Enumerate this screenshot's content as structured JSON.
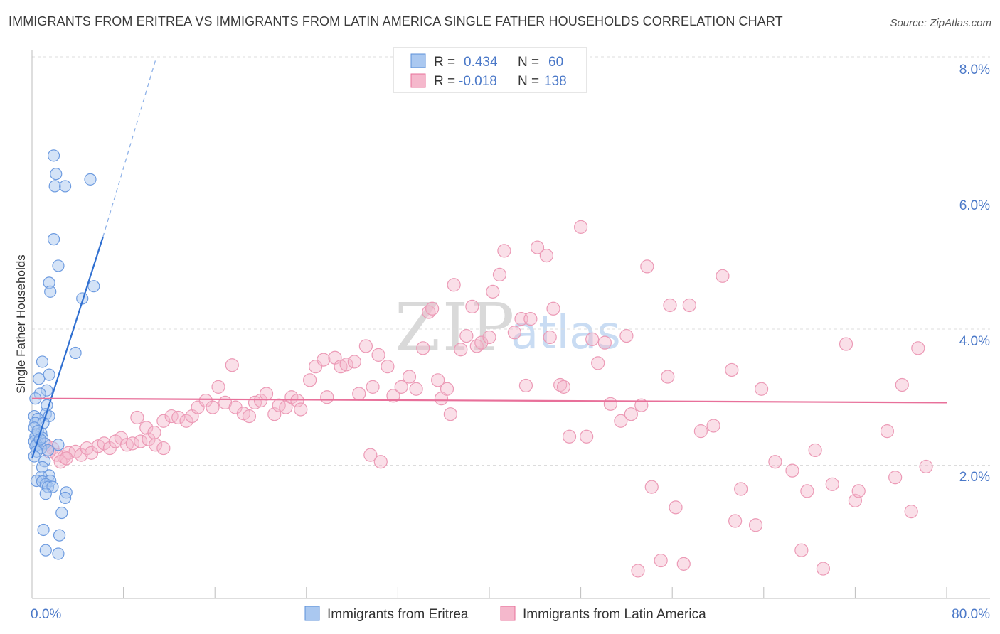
{
  "header": {
    "title": "IMMIGRANTS FROM ERITREA VS IMMIGRANTS FROM LATIN AMERICA SINGLE FATHER HOUSEHOLDS CORRELATION CHART",
    "source": "Source: ZipAtlas.com"
  },
  "watermark": {
    "zip": "ZIP",
    "atlas": "atlas"
  },
  "colors": {
    "series_blue": "#5b8fd9",
    "series_blue_fill": "#aac8f0",
    "series_pink": "#e8709a",
    "series_pink_fill": "#f5b8cc",
    "axis_label": "#4a78c8",
    "grid": "#d8d8d8"
  },
  "legend": {
    "rows": [
      {
        "r_label": "R =",
        "r_value": "0.434",
        "n_label": "N =",
        "n_value": "60"
      },
      {
        "r_label": "R =",
        "r_value": "-0.018",
        "n_label": "N =",
        "n_value": "138"
      }
    ]
  },
  "chart_data": {
    "type": "scatter",
    "title": "IMMIGRANTS FROM ERITREA VS IMMIGRANTS FROM LATIN AMERICA SINGLE FATHER HOUSEHOLDS CORRELATION CHART",
    "xlabel": "",
    "ylabel": "Single Father Households",
    "xlim": [
      0,
      80
    ],
    "ylim": [
      0,
      8
    ],
    "x_tick_labels": [
      "0.0%",
      "80.0%"
    ],
    "y_ticks": [
      2,
      4,
      6,
      8
    ],
    "y_tick_labels": [
      "2.0%",
      "4.0%",
      "6.0%",
      "8.0%"
    ],
    "grid": true,
    "legend_position": "top-center",
    "series": [
      {
        "name": "Immigrants from Eritrea",
        "color": "blue",
        "r": 0.434,
        "n": 60,
        "trend": {
          "x0": 0.0,
          "y0": 2.1,
          "x1": 6.2,
          "y1": 5.35,
          "dash_x1": 10.8,
          "dash_y1": 7.95
        },
        "points": [
          [
            1.9,
            6.55
          ],
          [
            2.1,
            6.28
          ],
          [
            2.0,
            6.1
          ],
          [
            2.9,
            6.1
          ],
          [
            5.1,
            6.2
          ],
          [
            1.9,
            5.32
          ],
          [
            2.3,
            4.93
          ],
          [
            1.5,
            4.68
          ],
          [
            1.6,
            4.55
          ],
          [
            5.4,
            4.63
          ],
          [
            4.4,
            4.45
          ],
          [
            3.8,
            3.65
          ],
          [
            0.9,
            3.52
          ],
          [
            1.5,
            3.33
          ],
          [
            0.6,
            3.27
          ],
          [
            1.3,
            3.1
          ],
          [
            0.7,
            3.05
          ],
          [
            0.3,
            2.98
          ],
          [
            1.3,
            2.88
          ],
          [
            1.2,
            2.75
          ],
          [
            1.5,
            2.72
          ],
          [
            0.2,
            2.72
          ],
          [
            0.5,
            2.68
          ],
          [
            0.3,
            2.62
          ],
          [
            1.0,
            2.62
          ],
          [
            0.2,
            2.55
          ],
          [
            0.8,
            2.47
          ],
          [
            0.4,
            2.45
          ],
          [
            0.3,
            2.42
          ],
          [
            0.9,
            2.4
          ],
          [
            0.2,
            2.35
          ],
          [
            0.5,
            2.33
          ],
          [
            1.1,
            2.32
          ],
          [
            0.4,
            2.3
          ],
          [
            2.3,
            2.3
          ],
          [
            0.3,
            2.28
          ],
          [
            0.8,
            2.25
          ],
          [
            1.4,
            2.22
          ],
          [
            0.4,
            2.2
          ],
          [
            0.2,
            2.13
          ],
          [
            1.1,
            2.06
          ],
          [
            0.9,
            1.97
          ],
          [
            1.5,
            1.85
          ],
          [
            0.8,
            1.83
          ],
          [
            0.4,
            1.77
          ],
          [
            0.9,
            1.76
          ],
          [
            1.6,
            1.77
          ],
          [
            1.2,
            1.72
          ],
          [
            1.4,
            1.68
          ],
          [
            1.8,
            1.68
          ],
          [
            3.0,
            1.6
          ],
          [
            1.2,
            1.58
          ],
          [
            2.9,
            1.52
          ],
          [
            2.6,
            1.3
          ],
          [
            1.0,
            1.05
          ],
          [
            2.4,
            0.97
          ],
          [
            1.2,
            0.75
          ],
          [
            2.3,
            0.7
          ],
          [
            0.5,
            2.5
          ],
          [
            0.7,
            2.38
          ]
        ]
      },
      {
        "name": "Immigrants from Latin America",
        "color": "pink",
        "r": -0.018,
        "n": 138,
        "trend": {
          "x0": 0.0,
          "y0": 2.98,
          "x1": 80.0,
          "y1": 2.92
        },
        "points": [
          [
            1.2,
            2.3
          ],
          [
            1.8,
            2.25
          ],
          [
            2.2,
            2.15
          ],
          [
            2.8,
            2.12
          ],
          [
            3.2,
            2.18
          ],
          [
            3.8,
            2.2
          ],
          [
            4.3,
            2.15
          ],
          [
            4.8,
            2.25
          ],
          [
            5.2,
            2.18
          ],
          [
            5.8,
            2.28
          ],
          [
            6.3,
            2.32
          ],
          [
            6.8,
            2.25
          ],
          [
            7.3,
            2.35
          ],
          [
            7.8,
            2.4
          ],
          [
            8.3,
            2.3
          ],
          [
            8.8,
            2.32
          ],
          [
            9.5,
            2.35
          ],
          [
            10.2,
            2.38
          ],
          [
            10.8,
            2.3
          ],
          [
            11.5,
            2.25
          ],
          [
            2.5,
            2.05
          ],
          [
            3.0,
            2.1
          ],
          [
            1.5,
            2.2
          ],
          [
            9.2,
            2.7
          ],
          [
            10.0,
            2.55
          ],
          [
            10.7,
            2.48
          ],
          [
            11.5,
            2.65
          ],
          [
            12.2,
            2.72
          ],
          [
            12.8,
            2.7
          ],
          [
            13.5,
            2.65
          ],
          [
            14.0,
            2.72
          ],
          [
            14.5,
            2.85
          ],
          [
            15.2,
            2.95
          ],
          [
            15.8,
            2.85
          ],
          [
            16.3,
            3.15
          ],
          [
            16.9,
            2.92
          ],
          [
            17.5,
            3.47
          ],
          [
            17.8,
            2.85
          ],
          [
            18.5,
            2.76
          ],
          [
            19.0,
            2.72
          ],
          [
            19.5,
            2.92
          ],
          [
            20.0,
            2.95
          ],
          [
            20.5,
            3.05
          ],
          [
            21.2,
            2.75
          ],
          [
            21.6,
            2.88
          ],
          [
            22.2,
            2.85
          ],
          [
            22.7,
            3.0
          ],
          [
            23.2,
            2.95
          ],
          [
            23.5,
            2.82
          ],
          [
            24.3,
            3.25
          ],
          [
            24.8,
            3.45
          ],
          [
            25.5,
            3.55
          ],
          [
            25.8,
            3.0
          ],
          [
            26.5,
            3.58
          ],
          [
            27.0,
            3.45
          ],
          [
            27.5,
            3.48
          ],
          [
            28.2,
            3.52
          ],
          [
            28.6,
            3.05
          ],
          [
            29.2,
            3.75
          ],
          [
            29.8,
            3.15
          ],
          [
            30.3,
            3.62
          ],
          [
            31.1,
            3.45
          ],
          [
            31.6,
            3.02
          ],
          [
            32.3,
            3.15
          ],
          [
            33.0,
            3.3
          ],
          [
            33.6,
            3.12
          ],
          [
            34.2,
            3.72
          ],
          [
            34.7,
            4.25
          ],
          [
            35.0,
            4.3
          ],
          [
            35.5,
            3.25
          ],
          [
            35.8,
            2.98
          ],
          [
            36.3,
            3.12
          ],
          [
            36.6,
            2.75
          ],
          [
            36.9,
            4.65
          ],
          [
            37.5,
            3.7
          ],
          [
            38.0,
            3.9
          ],
          [
            38.5,
            4.33
          ],
          [
            38.9,
            3.75
          ],
          [
            39.3,
            3.8
          ],
          [
            40.0,
            3.88
          ],
          [
            40.3,
            4.55
          ],
          [
            40.9,
            4.8
          ],
          [
            41.3,
            5.15
          ],
          [
            42.2,
            3.95
          ],
          [
            42.8,
            4.15
          ],
          [
            43.2,
            3.17
          ],
          [
            43.6,
            4.15
          ],
          [
            44.2,
            5.2
          ],
          [
            45.0,
            5.08
          ],
          [
            45.3,
            3.88
          ],
          [
            45.6,
            4.3
          ],
          [
            46.2,
            3.18
          ],
          [
            46.5,
            3.15
          ],
          [
            47.0,
            2.42
          ],
          [
            48.0,
            5.5
          ],
          [
            48.5,
            2.42
          ],
          [
            49.0,
            3.85
          ],
          [
            49.5,
            3.5
          ],
          [
            50.1,
            3.8
          ],
          [
            50.6,
            2.9
          ],
          [
            51.5,
            2.65
          ],
          [
            52.0,
            3.9
          ],
          [
            52.4,
            2.75
          ],
          [
            53.0,
            0.45
          ],
          [
            53.3,
            2.88
          ],
          [
            53.8,
            4.92
          ],
          [
            54.2,
            1.68
          ],
          [
            55.0,
            0.6
          ],
          [
            55.6,
            3.3
          ],
          [
            55.8,
            4.35
          ],
          [
            56.3,
            1.38
          ],
          [
            57.5,
            4.35
          ],
          [
            57.0,
            0.55
          ],
          [
            58.5,
            2.5
          ],
          [
            59.6,
            2.58
          ],
          [
            60.4,
            4.78
          ],
          [
            61.2,
            3.4
          ],
          [
            61.5,
            1.18
          ],
          [
            62.0,
            1.65
          ],
          [
            63.3,
            1.12
          ],
          [
            63.8,
            3.12
          ],
          [
            65.0,
            2.05
          ],
          [
            66.5,
            1.92
          ],
          [
            67.3,
            0.75
          ],
          [
            67.8,
            1.62
          ],
          [
            68.5,
            2.22
          ],
          [
            69.2,
            0.48
          ],
          [
            70.0,
            1.72
          ],
          [
            71.2,
            3.78
          ],
          [
            72.0,
            1.48
          ],
          [
            72.3,
            1.62
          ],
          [
            74.8,
            2.5
          ],
          [
            75.5,
            1.82
          ],
          [
            76.1,
            3.18
          ],
          [
            76.9,
            1.32
          ],
          [
            77.5,
            3.72
          ],
          [
            78.2,
            1.98
          ],
          [
            29.6,
            2.15
          ],
          [
            30.5,
            2.05
          ]
        ]
      }
    ],
    "bottom_legend": [
      "Immigrants from Eritrea",
      "Immigrants from Latin America"
    ]
  }
}
